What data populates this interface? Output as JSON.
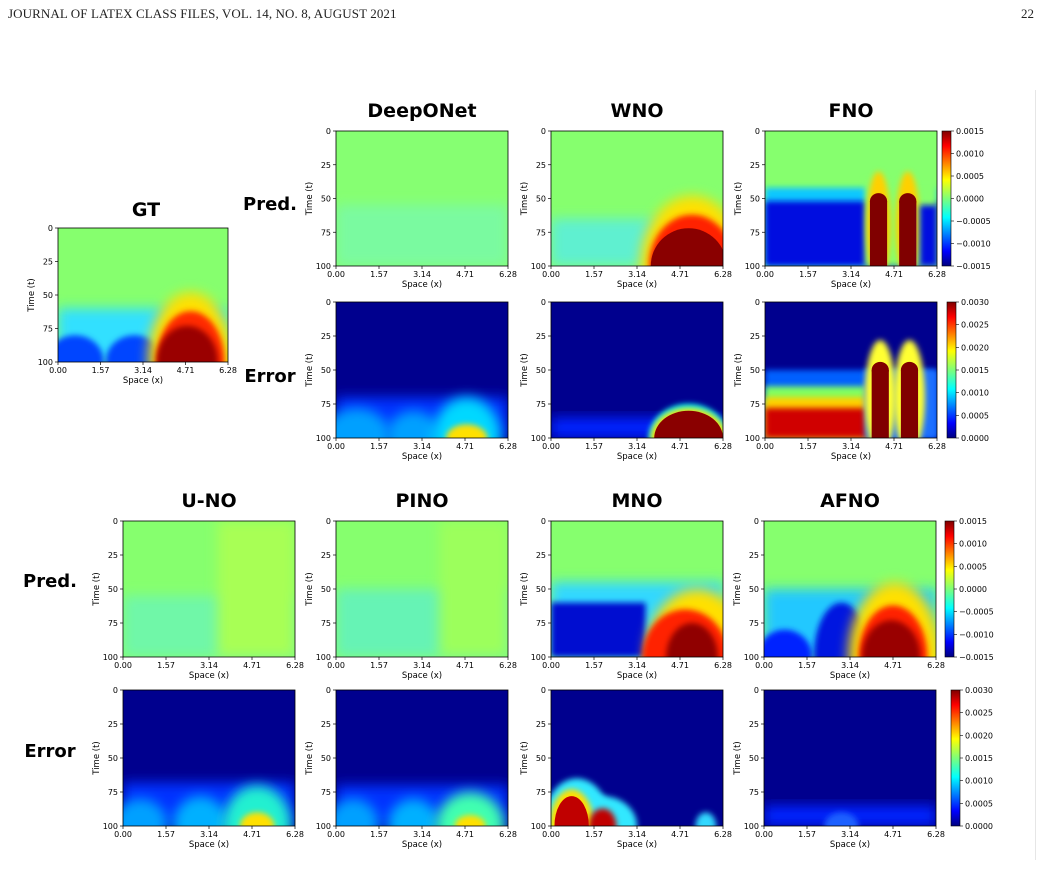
{
  "header": {
    "journal": "JOURNAL OF LATEX CLASS FILES, VOL. 14, NO. 8, AUGUST 2021",
    "page": "22"
  },
  "row_labels": {
    "pred": "Pred.",
    "error": "Error"
  },
  "gt_title": "GT",
  "top_models": [
    "DeepONet",
    "WNO",
    "FNO"
  ],
  "bottom_models": [
    "U-NO",
    "PINO",
    "MNO",
    "AFNO"
  ],
  "axes": {
    "xlabel": "Space (x)",
    "ylabel": "Time (t)",
    "xticks": [
      "0.00",
      "1.57",
      "3.14",
      "4.71",
      "6.28"
    ],
    "yticks": [
      "0",
      "25",
      "50",
      "75",
      "100"
    ]
  },
  "colorbars": {
    "pred": [
      "0.0015",
      "0.0010",
      "0.0005",
      "0.0000",
      "−0.0005",
      "−0.0010",
      "−0.0015"
    ],
    "error": [
      "0.0030",
      "0.0025",
      "0.0020",
      "0.0015",
      "0.0010",
      "0.0005",
      "0.0000"
    ]
  },
  "colormap": "jet",
  "colors": {
    "text": "#000000",
    "header": "#222222"
  }
}
